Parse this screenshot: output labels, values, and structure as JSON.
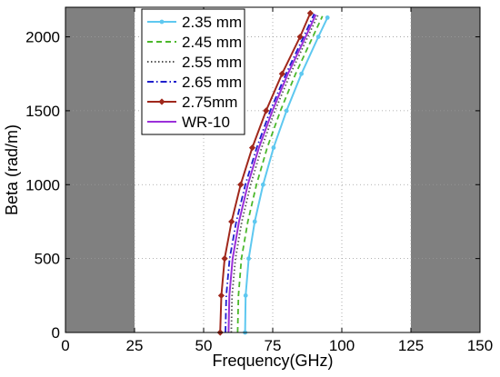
{
  "chart_data": {
    "type": "line",
    "xlabel": "Frequency(GHz)",
    "ylabel": "Beta (rad/m)",
    "xlim": [
      0,
      150
    ],
    "ylim": [
      0,
      2200
    ],
    "x_ticks": [
      0,
      25,
      50,
      75,
      100,
      125,
      150
    ],
    "y_ticks": [
      0,
      500,
      1000,
      1500,
      2000
    ],
    "x_tick_labels": [
      "0",
      "25",
      "50",
      "75",
      "100",
      "125",
      "150"
    ],
    "y_tick_labels": [
      "0",
      "500",
      "1000",
      "1500",
      "2000"
    ],
    "grid": true,
    "grid_style": "dotted",
    "shaded_regions": [
      {
        "x": [
          0,
          25
        ],
        "color": "#808080"
      },
      {
        "x": [
          125,
          150
        ],
        "color": "#808080"
      }
    ],
    "legend_position": "top-center",
    "series": [
      {
        "name": "2.35 mm",
        "color": "#5ec8f0",
        "line": "solid",
        "marker": "point",
        "points": [
          [
            65.0,
            0
          ],
          [
            65.2,
            250
          ],
          [
            66.3,
            500
          ],
          [
            68.5,
            750
          ],
          [
            71.5,
            1000
          ],
          [
            75.3,
            1250
          ],
          [
            80.0,
            1500
          ],
          [
            85.4,
            1750
          ],
          [
            91.5,
            2000
          ],
          [
            94.8,
            2130
          ]
        ]
      },
      {
        "name": "2.45 mm",
        "color": "#4cb82c",
        "line": "dashed",
        "marker": "none",
        "points": [
          [
            62.3,
            0
          ],
          [
            62.6,
            250
          ],
          [
            63.7,
            500
          ],
          [
            66.0,
            750
          ],
          [
            69.1,
            1000
          ],
          [
            73.0,
            1250
          ],
          [
            77.8,
            1500
          ],
          [
            83.3,
            1750
          ],
          [
            89.5,
            2000
          ],
          [
            93.0,
            2140
          ]
        ]
      },
      {
        "name": "2.55 mm",
        "color": "#555555",
        "line": "dotted",
        "marker": "none",
        "points": [
          [
            60.0,
            0
          ],
          [
            60.3,
            250
          ],
          [
            61.5,
            500
          ],
          [
            63.8,
            750
          ],
          [
            67.0,
            1000
          ],
          [
            71.0,
            1250
          ],
          [
            75.8,
            1500
          ],
          [
            81.4,
            1750
          ],
          [
            87.7,
            2000
          ],
          [
            91.3,
            2145
          ]
        ]
      },
      {
        "name": "2.65 mm",
        "color": "#1f1fcc",
        "line": "dashdot",
        "marker": "none",
        "points": [
          [
            57.9,
            0
          ],
          [
            58.2,
            250
          ],
          [
            59.4,
            500
          ],
          [
            61.8,
            750
          ],
          [
            65.1,
            1000
          ],
          [
            69.2,
            1250
          ],
          [
            74.1,
            1500
          ],
          [
            79.8,
            1750
          ],
          [
            86.2,
            2000
          ],
          [
            90.0,
            2155
          ]
        ]
      },
      {
        "name": "2.75mm",
        "color": "#a0281c",
        "line": "solid",
        "marker": "diamond",
        "points": [
          [
            56.0,
            0
          ],
          [
            56.4,
            250
          ],
          [
            57.6,
            500
          ],
          [
            60.1,
            750
          ],
          [
            63.4,
            1000
          ],
          [
            67.6,
            1250
          ],
          [
            72.6,
            1500
          ],
          [
            78.4,
            1750
          ],
          [
            84.9,
            2000
          ],
          [
            88.6,
            2160
          ]
        ]
      },
      {
        "name": "WR-10",
        "color": "#9b30d9",
        "line": "solid",
        "marker": "none",
        "points": [
          [
            59.0,
            0
          ],
          [
            59.3,
            250
          ],
          [
            60.5,
            500
          ],
          [
            62.8,
            750
          ],
          [
            66.0,
            1000
          ],
          [
            70.0,
            1250
          ],
          [
            74.9,
            1500
          ],
          [
            80.5,
            1750
          ],
          [
            86.9,
            2000
          ],
          [
            90.6,
            2150
          ]
        ]
      }
    ]
  }
}
